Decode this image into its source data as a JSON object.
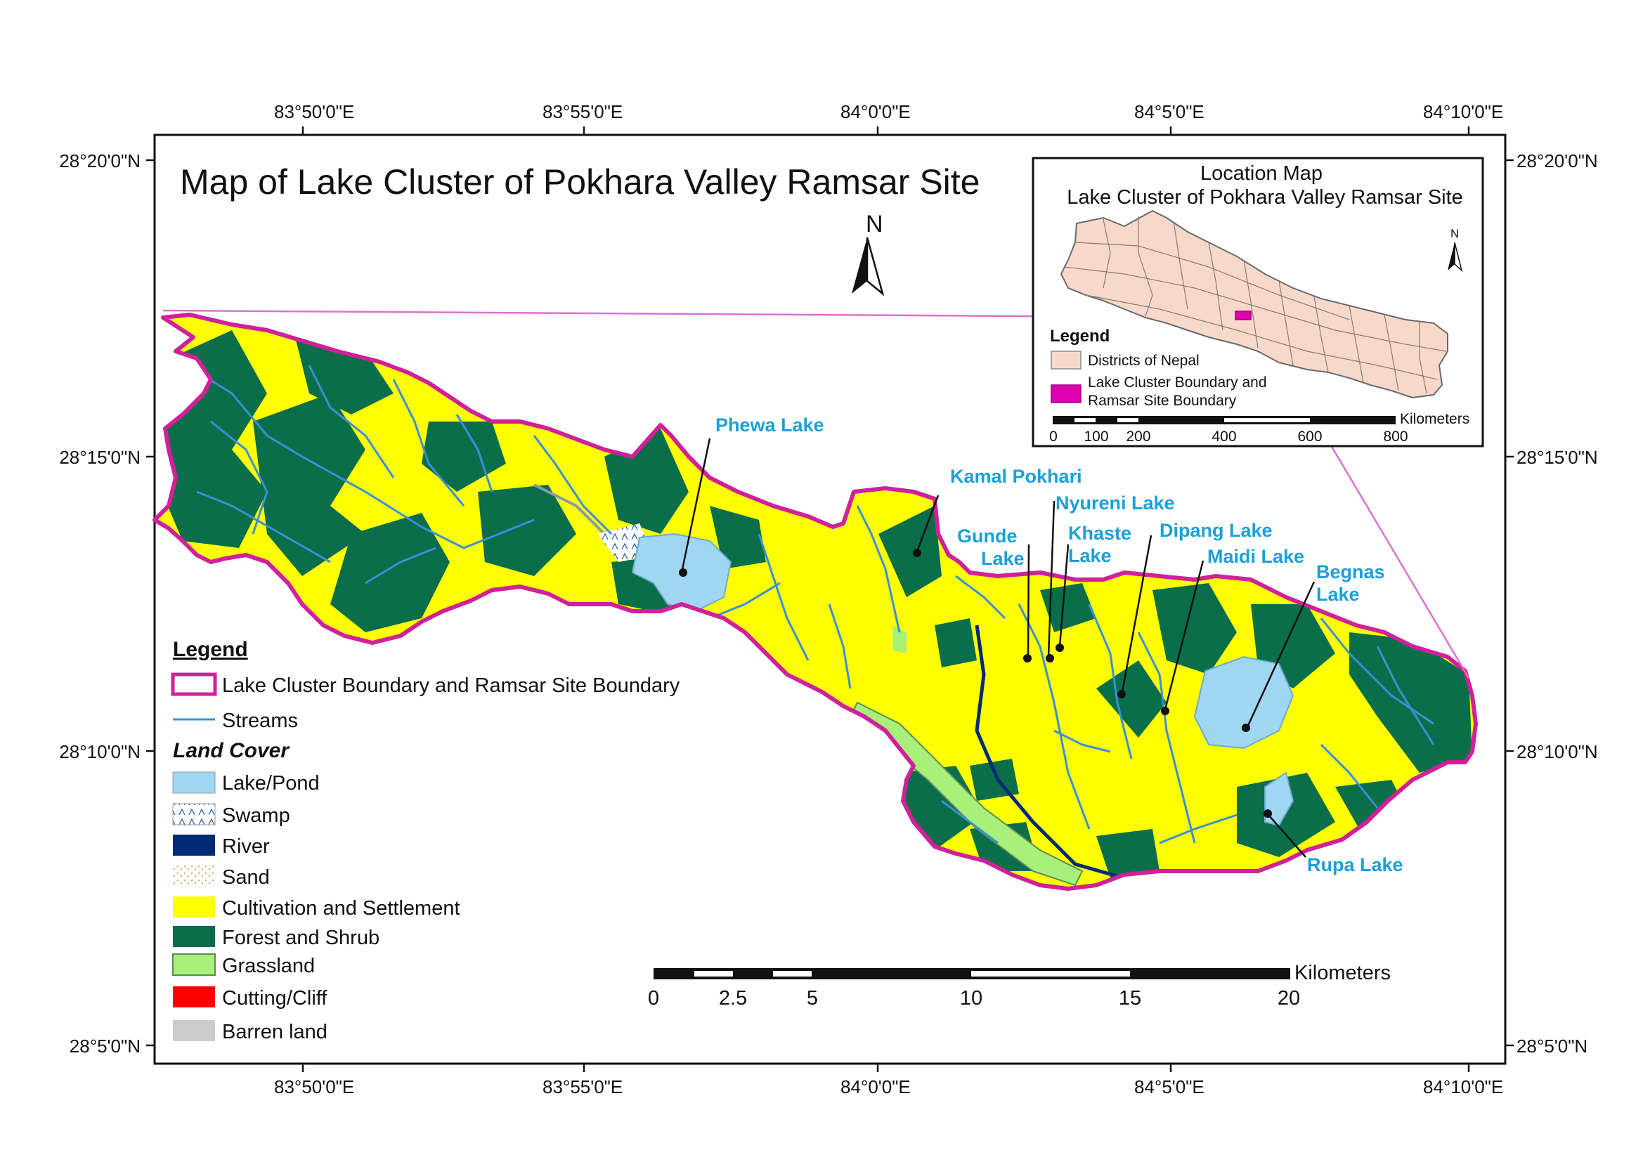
{
  "title": "Map of Lake Cluster of Pokhara Valley Ramsar Site",
  "north_label": "N",
  "top_lon_labels": [
    "83°50'0\"E",
    "83°55'0\"E",
    "84°0'0\"E",
    "84°5'0\"E",
    "84°10'0\"E"
  ],
  "bottom_lon_labels": [
    "83°50'0\"E",
    "83°55'0\"E",
    "84°0'0\"E",
    "84°5'0\"E",
    "84°10'0\"E"
  ],
  "left_lat_labels": [
    "28°20'0\"N",
    "28°15'0\"N",
    "28°10'0\"N",
    "28°5'0\"N"
  ],
  "right_lat_labels": [
    "28°20'0\"N",
    "28°15'0\"N",
    "28°10'0\"N",
    "28°5'0\"N"
  ],
  "lakes": {
    "phewa": "Phewa Lake",
    "kamal": "Kamal Pokhari",
    "nyureni": "Nyureni Lake",
    "gunde_1": "Gunde",
    "gunde_2": "Lake",
    "khaste_1": "Khaste",
    "khaste_2": "Lake",
    "dipang": "Dipang Lake",
    "maidi": "Maidi Lake",
    "begnas_1": "Begnas",
    "begnas_2": "Lake",
    "rupa": "Rupa Lake"
  },
  "legend": {
    "heading": "Legend",
    "boundary": "Lake Cluster Boundary and Ramsar Site Boundary",
    "streams": "Streams",
    "land_cover_heading": "Land Cover",
    "items": [
      {
        "label": "Lake/Pond",
        "color": "#9fd6f2"
      },
      {
        "label": "Swamp",
        "color": "#ffffff"
      },
      {
        "label": "River",
        "color": "#002a78"
      },
      {
        "label": "Sand",
        "color": "#ffffff"
      },
      {
        "label": "Cultivation and Settlement",
        "color": "#ffff00"
      },
      {
        "label": "Forest and Shrub",
        "color": "#0a6e4a"
      },
      {
        "label": "Grassland",
        "color": "#a8f07a"
      },
      {
        "label": "Cutting/Cliff",
        "color": "#ff0000"
      },
      {
        "label": "Barren land",
        "color": "#cccccc"
      }
    ]
  },
  "scale": {
    "unit": "Kilometers",
    "labels": [
      "0",
      "2.5",
      "5",
      "10",
      "15",
      "20"
    ]
  },
  "inset": {
    "title_1": "Location Map",
    "title_2": "Lake Cluster of Pokhara Valley Ramsar Site",
    "north_label": "N",
    "legend_heading": "Legend",
    "districts": "Districts of Nepal",
    "boundary_1": "Lake Cluster Boundary and",
    "boundary_2": "Ramsar Site Boundary",
    "scale_unit": "Kilometers",
    "scale_labels": [
      "0",
      "100",
      "200",
      "400",
      "600",
      "800"
    ]
  },
  "colors": {
    "boundary": "#d0209a",
    "stream": "#3a8fd8",
    "forest": "#0a6e4a",
    "cultivation": "#ffff00",
    "lake": "#9fd6f2",
    "grass": "#a8f07a",
    "district_fill": "#f7d9cc",
    "label_blue": "#1aa0d8"
  }
}
